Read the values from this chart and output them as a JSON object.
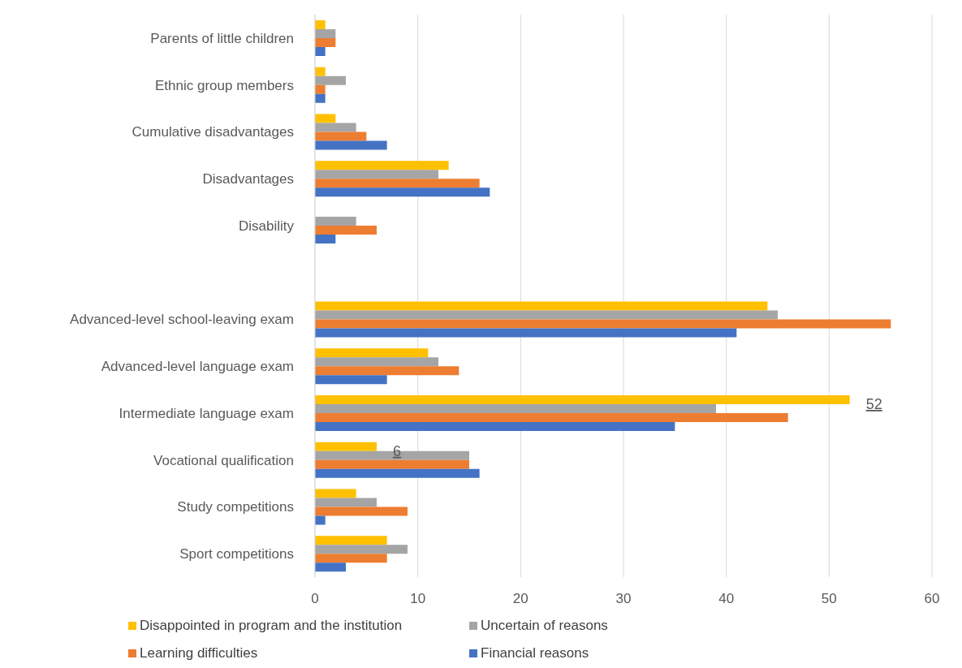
{
  "chart_data": {
    "type": "bar",
    "orientation": "horizontal",
    "categories": [
      "Parents of little children",
      "Ethnic group members",
      "Cumulative disadvantages",
      "Disadvantages",
      "Disability",
      null,
      "Advanced-level school-leaving exam",
      "Advanced-level language exam",
      "Intermediate language exam",
      "Vocational qualification",
      "Study competitions",
      "Sport competitions"
    ],
    "series": [
      {
        "name": "Disappointed in program and the institution",
        "color": "#ffc000",
        "values": [
          1,
          1,
          2,
          13,
          null,
          null,
          44,
          11,
          52,
          6,
          4,
          7
        ],
        "value_labels": [
          null,
          null,
          null,
          null,
          null,
          null,
          null,
          null,
          "52",
          "6",
          null,
          null
        ]
      },
      {
        "name": "Uncertain of reasons",
        "color": "#a5a5a5",
        "values": [
          2,
          3,
          4,
          12,
          4,
          null,
          45,
          12,
          39,
          15,
          6,
          9
        ]
      },
      {
        "name": "Learning difficulties",
        "color": "#ed7d31",
        "values": [
          2,
          1,
          5,
          16,
          6,
          null,
          56,
          14,
          46,
          15,
          9,
          7
        ]
      },
      {
        "name": "Financial reasons",
        "color": "#4472c4",
        "values": [
          1,
          1,
          7,
          17,
          2,
          null,
          41,
          7,
          35,
          16,
          1,
          3
        ]
      }
    ],
    "xlim": [
      0,
      60
    ],
    "xticks": [
      0,
      10,
      20,
      30,
      40,
      50,
      60
    ],
    "grid": "x",
    "legend": "bottom"
  }
}
